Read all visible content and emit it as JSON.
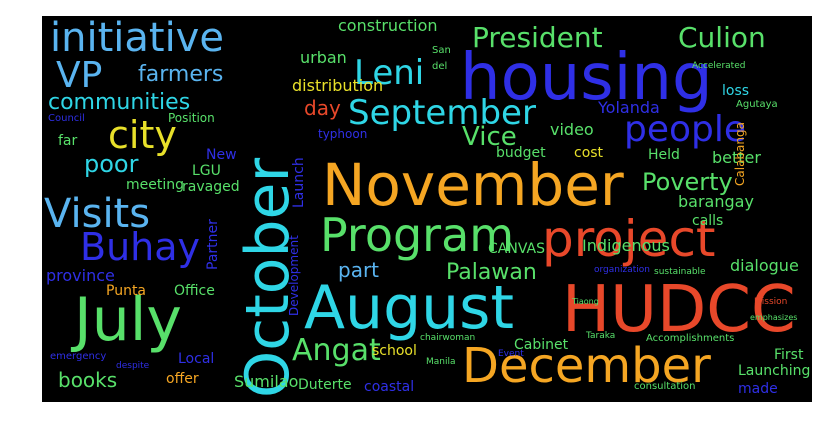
{
  "palette": {
    "background": "#000000",
    "orange": "#f5a623",
    "blue": "#2f2fe6",
    "red": "#e8482a",
    "cyan": "#2fd6e6",
    "green": "#58e06a",
    "yellow": "#e8e02a",
    "lightblue": "#5ab4f0",
    "white": "#e6e6e6"
  },
  "words": [
    {
      "text": "housing",
      "color": "blue"
    },
    {
      "text": "November",
      "color": "orange"
    },
    {
      "text": "October",
      "color": "cyan"
    },
    {
      "text": "August",
      "color": "cyan"
    },
    {
      "text": "HUDCC",
      "color": "red"
    },
    {
      "text": "July",
      "color": "green"
    },
    {
      "text": "project",
      "color": "red"
    },
    {
      "text": "December",
      "color": "orange"
    },
    {
      "text": "Program",
      "color": "green"
    },
    {
      "text": "initiative",
      "color": "lightblue"
    },
    {
      "text": "people",
      "color": "blue"
    },
    {
      "text": "Visits",
      "color": "lightblue"
    },
    {
      "text": "Buhay",
      "color": "blue"
    },
    {
      "text": "city",
      "color": "yellow"
    },
    {
      "text": "September",
      "color": "cyan"
    },
    {
      "text": "VP",
      "color": "lightblue"
    },
    {
      "text": "Leni",
      "color": "cyan"
    },
    {
      "text": "President",
      "color": "green"
    },
    {
      "text": "Culion",
      "color": "green"
    },
    {
      "text": "Angat",
      "color": "green"
    },
    {
      "text": "communities",
      "color": "cyan"
    },
    {
      "text": "farmers",
      "color": "lightblue"
    },
    {
      "text": "poor",
      "color": "cyan"
    },
    {
      "text": "Vice",
      "color": "green"
    },
    {
      "text": "Poverty",
      "color": "green"
    },
    {
      "text": "Palawan",
      "color": "green"
    },
    {
      "text": "part",
      "color": "lightblue"
    },
    {
      "text": "day",
      "color": "red"
    },
    {
      "text": "distribution",
      "color": "yellow"
    },
    {
      "text": "construction",
      "color": "green"
    },
    {
      "text": "urban",
      "color": "green"
    },
    {
      "text": "Yolanda",
      "color": "blue"
    },
    {
      "text": "loss",
      "color": "cyan"
    },
    {
      "text": "video",
      "color": "green"
    },
    {
      "text": "Held",
      "color": "green"
    },
    {
      "text": "cost",
      "color": "yellow"
    },
    {
      "text": "budget",
      "color": "green"
    },
    {
      "text": "better",
      "color": "green"
    },
    {
      "text": "barangay",
      "color": "green"
    },
    {
      "text": "calls",
      "color": "green"
    },
    {
      "text": "dialogue",
      "color": "green"
    },
    {
      "text": "Indigenous",
      "color": "green"
    },
    {
      "text": "CANVAS",
      "color": "green"
    },
    {
      "text": "province",
      "color": "blue"
    },
    {
      "text": "meeting",
      "color": "green"
    },
    {
      "text": "LGU",
      "color": "green"
    },
    {
      "text": "ravaged",
      "color": "green"
    },
    {
      "text": "New",
      "color": "blue"
    },
    {
      "text": "far",
      "color": "green"
    },
    {
      "text": "Office",
      "color": "green"
    },
    {
      "text": "Punta",
      "color": "orange"
    },
    {
      "text": "books",
      "color": "green"
    },
    {
      "text": "offer",
      "color": "orange"
    },
    {
      "text": "Local",
      "color": "blue"
    },
    {
      "text": "Sumilao",
      "color": "green"
    },
    {
      "text": "Duterte",
      "color": "green"
    },
    {
      "text": "coastal",
      "color": "blue"
    },
    {
      "text": "school",
      "color": "yellow"
    },
    {
      "text": "Cabinet",
      "color": "green"
    },
    {
      "text": "First",
      "color": "green"
    },
    {
      "text": "Launching",
      "color": "green"
    },
    {
      "text": "made",
      "color": "blue"
    },
    {
      "text": "typhoon",
      "color": "blue"
    },
    {
      "text": "Position",
      "color": "green"
    },
    {
      "text": "Council",
      "color": "blue"
    },
    {
      "text": "Accomplishments",
      "color": "green"
    },
    {
      "text": "consultation",
      "color": "green"
    },
    {
      "text": "Launch",
      "color": "blue"
    },
    {
      "text": "Partner",
      "color": "blue"
    },
    {
      "text": "Development",
      "color": "blue"
    },
    {
      "text": "Calabanga",
      "color": "orange"
    },
    {
      "text": "Agutaya",
      "color": "green"
    },
    {
      "text": "del",
      "color": "green"
    },
    {
      "text": "San",
      "color": "green"
    },
    {
      "text": "Accelerated",
      "color": "green"
    },
    {
      "text": "Mission",
      "color": "red"
    },
    {
      "text": "emphasizes",
      "color": "green"
    },
    {
      "text": "Tiaong",
      "color": "green"
    },
    {
      "text": "Taraka",
      "color": "green"
    },
    {
      "text": "chairwoman",
      "color": "green"
    },
    {
      "text": "Manila",
      "color": "green"
    },
    {
      "text": "emergency",
      "color": "blue"
    },
    {
      "text": "despite",
      "color": "blue"
    },
    {
      "text": "Event",
      "color": "blue"
    },
    {
      "text": "organization",
      "color": "blue"
    },
    {
      "text": "sustainable",
      "color": "green"
    }
  ]
}
